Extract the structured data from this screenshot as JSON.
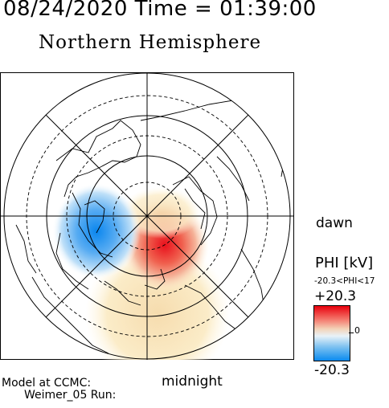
{
  "header": {
    "date_time": "08/24/2020 Time = 01:39:00",
    "title": "Northern Hemisphere"
  },
  "map": {
    "dawn_label": "dawn",
    "midnight_label": "midnight"
  },
  "legend": {
    "quantity_label": "PHI [kV]",
    "range_text": "-20.3<PHI<17",
    "max_label": "+20.3",
    "zero_label": "0",
    "min_label": "-20.3",
    "colors": {
      "max": "#e8000c",
      "mid": "#f0f0f0",
      "min": "#0a8aef"
    }
  },
  "footer": {
    "model_label": "Model at CCMC:",
    "run_label": "Weimer_05 Run:"
  }
}
